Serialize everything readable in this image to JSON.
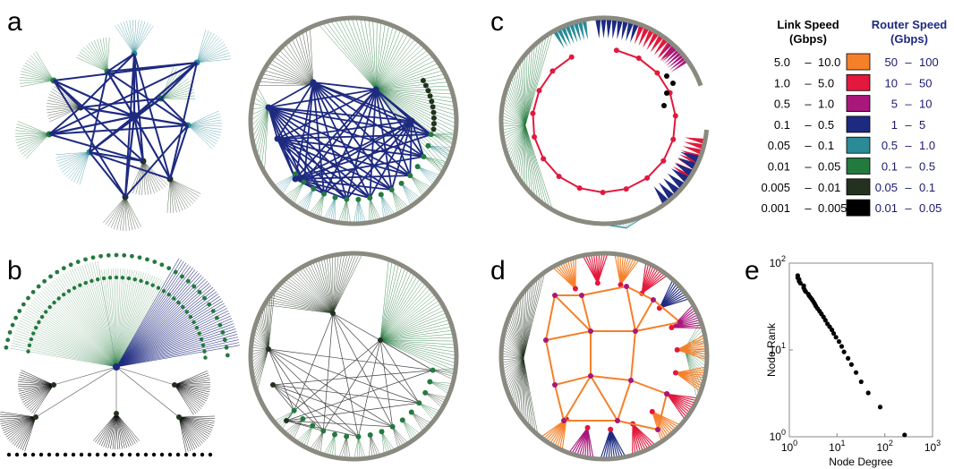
{
  "panel_labels": [
    "a",
    "b",
    "c",
    "d",
    "e"
  ],
  "colors": {
    "c50_100": "#f6802a",
    "c10_50": "#e2183c",
    "c5_10": "#a8177a",
    "c1_5": "#1e2a80",
    "c05_1": "#2a8a96",
    "c01_05": "#237a3e",
    "c005_01": "#23321f",
    "c001_005": "#000000",
    "ring": "#8a8a80"
  },
  "legend": {
    "link_header": "Link Speed",
    "link_unit": "(Gbps)",
    "router_header": "Router Speed",
    "router_unit": "(Gbps)",
    "rows": [
      {
        "link_lo": "5.0",
        "link_hi": "10.0",
        "router_lo": "50",
        "router_hi": "100",
        "color": "#f6802a"
      },
      {
        "link_lo": "1.0",
        "link_hi": "5.0",
        "router_lo": "10",
        "router_hi": "50",
        "color": "#e2183c"
      },
      {
        "link_lo": "0.5",
        "link_hi": "1.0",
        "router_lo": "5",
        "router_hi": "10",
        "color": "#a8177a"
      },
      {
        "link_lo": "0.1",
        "link_hi": "0.5",
        "router_lo": "1",
        "router_hi": "5",
        "color": "#1e2a80"
      },
      {
        "link_lo": "0.05",
        "link_hi": "0.1",
        "router_lo": "0.5",
        "router_hi": "1.0",
        "color": "#2a8a96"
      },
      {
        "link_lo": "0.01",
        "link_hi": "0.05",
        "router_lo": "0.1",
        "router_hi": "0.5",
        "color": "#237a3e"
      },
      {
        "link_lo": "0.005",
        "link_hi": "0.01",
        "router_lo": "0.05",
        "router_hi": "0.1",
        "color": "#23321f"
      },
      {
        "link_lo": "0.001",
        "link_hi": "0.005",
        "router_lo": "0.01",
        "router_hi": "0.05",
        "color": "#000000"
      }
    ]
  },
  "chart_data": {
    "type": "scatter",
    "xlabel": "Node Degree",
    "ylabel": "Node Rank",
    "xscale": "log",
    "yscale": "log",
    "xlim": [
      1,
      1000
    ],
    "ylim": [
      1,
      100
    ],
    "x_ticks": [
      "10",
      "10",
      "10",
      "10"
    ],
    "x_tick_exps": [
      "0",
      "1",
      "2",
      "3"
    ],
    "y_ticks": [
      "10",
      "10",
      "10"
    ],
    "y_tick_exps": [
      "0",
      "1",
      "2"
    ],
    "points": [
      [
        1.5,
        72
      ],
      [
        1.5,
        68
      ],
      [
        1.6,
        65
      ],
      [
        1.6,
        62
      ],
      [
        1.7,
        59
      ],
      [
        2.0,
        55
      ],
      [
        2.0,
        52
      ],
      [
        2.1,
        49
      ],
      [
        2.2,
        47
      ],
      [
        2.5,
        44
      ],
      [
        2.6,
        42
      ],
      [
        2.8,
        40
      ],
      [
        3.0,
        38
      ],
      [
        3.2,
        36
      ],
      [
        3.4,
        34
      ],
      [
        3.6,
        32
      ],
      [
        3.9,
        30
      ],
      [
        4.3,
        28
      ],
      [
        4.7,
        26
      ],
      [
        5.2,
        24
      ],
      [
        5.7,
        22
      ],
      [
        6.3,
        20
      ],
      [
        7.0,
        18.5
      ],
      [
        7.8,
        17
      ],
      [
        8.5,
        15.5
      ],
      [
        9.5,
        14
      ],
      [
        11,
        12.5
      ],
      [
        12.5,
        11
      ],
      [
        14,
        9.5
      ],
      [
        17,
        8
      ],
      [
        20,
        6.8
      ],
      [
        25,
        5.5
      ],
      [
        32,
        4.3
      ],
      [
        45,
        3.2
      ],
      [
        80,
        2.2
      ],
      [
        260,
        1.05
      ]
    ]
  }
}
